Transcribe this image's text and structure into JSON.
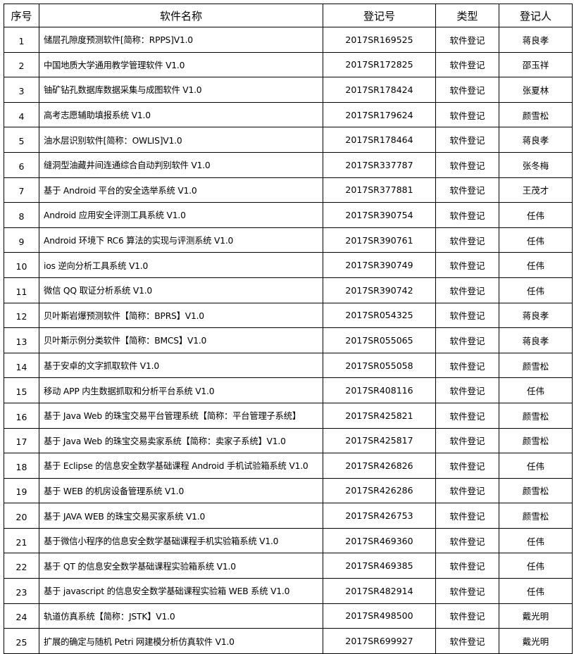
{
  "table": {
    "header": [
      "序号",
      "软件名称",
      "登记号",
      "类型",
      "登记人"
    ],
    "rows": [
      [
        "1",
        "储层孔隙度预测软件[简称：RPPS]V1.0",
        "2017SR169525",
        "软件登记",
        "蒋良孝"
      ],
      [
        "2",
        "中国地质大学通用教学管理软件 V1.0",
        "2017SR172825",
        "软件登记",
        "邵玉祥"
      ],
      [
        "3",
        "铀矿钻孔数据库数据采集与成图软件 V1.0",
        "2017SR178424",
        "软件登记",
        "张夏林"
      ],
      [
        "4",
        "高考志愿辅助填报系统 V1.0",
        "2017SR179624",
        "软件登记",
        "颜雪松"
      ],
      [
        "5",
        "油水层识别软件[简称：OWLIS]V1.0",
        "2017SR178464",
        "软件登记",
        "蒋良孝"
      ],
      [
        "6",
        "缝洞型油藏井间连通综合自动判别软件 V1.0",
        "2017SR337787",
        "软件登记",
        "张冬梅"
      ],
      [
        "7",
        "基于 Android 平台的安全选举系统 V1.0",
        "2017SR377881",
        "软件登记",
        "王茂才"
      ],
      [
        "8",
        "Android 应用安全评测工具系统 V1.0",
        "2017SR390754",
        "软件登记",
        "任伟"
      ],
      [
        "9",
        "Android 环境下 RC6 算法的实现与评测系统 V1.0",
        "2017SR390761",
        "软件登记",
        "任伟"
      ],
      [
        "10",
        "ios 逆向分析工具系统 V1.0",
        "2017SR390749",
        "软件登记",
        "任伟"
      ],
      [
        "11",
        "微信 QQ 取证分析系统 V1.0",
        "2017SR390742",
        "软件登记",
        "任伟"
      ],
      [
        "12",
        "贝叶斯岩爆预测软件【简称：BPRS】V1.0",
        "2017SR054325",
        "软件登记",
        "蒋良孝"
      ],
      [
        "13",
        "贝叶斯示例分类软件【简称：BMCS】V1.0",
        "2017SR055065",
        "软件登记",
        "蒋良孝"
      ],
      [
        "14",
        "基于安卓的文字抓取软件 V1.0",
        "2017SR055058",
        "软件登记",
        "颜雪松"
      ],
      [
        "15",
        "移动 APP 内生数据抓取和分析平台系统 V1.0",
        "2017SR408116",
        "软件登记",
        "任伟"
      ],
      [
        "16",
        "基于 Java Web 的珠宝交易平台管理系统【简称：平台管理子系统】",
        "2017SR425821",
        "软件登记",
        "颜雪松"
      ],
      [
        "17",
        "基于 Java Web 的珠宝交易卖家系统【简称：卖家子系统】V1.0",
        "2017SR425817",
        "软件登记",
        "颜雪松"
      ],
      [
        "18",
        "基于 Eclipse 的信息安全数学基础课程 Android 手机试验箱系统 V1.0",
        "2017SR426826",
        "软件登记",
        "任伟"
      ],
      [
        "19",
        "基于 WEB 的机房设备管理系统 V1.0",
        "2017SR426286",
        "软件登记",
        "颜雪松"
      ],
      [
        "20",
        "基于 JAVA WEB 的珠宝交易买家系统 V1.0",
        "2017SR426753",
        "软件登记",
        "颜雪松"
      ],
      [
        "21",
        "基于微信小程序的信息安全数学基础课程手机实验箱系统 V1.0",
        "2017SR469360",
        "软件登记",
        "任伟"
      ],
      [
        "22",
        "基于 QT 的信息安全数学基础课程实验箱系统 V1.0",
        "2017SR469385",
        "软件登记",
        "任伟"
      ],
      [
        "23",
        "基于 javascript 的信息安全数学基础课程实验箱 WEB 系统 V1.0",
        "2017SR482914",
        "软件登记",
        "任伟"
      ],
      [
        "24",
        "轨道仿真系统【简称：JSTK】V1.0",
        "2017SR498500",
        "软件登记",
        "戴光明"
      ],
      [
        "25",
        "扩展的确定与随机 Petri 网建模分析仿真软件 V1.0",
        "2017SR699927",
        "软件登记",
        "戴光明"
      ]
    ]
  }
}
